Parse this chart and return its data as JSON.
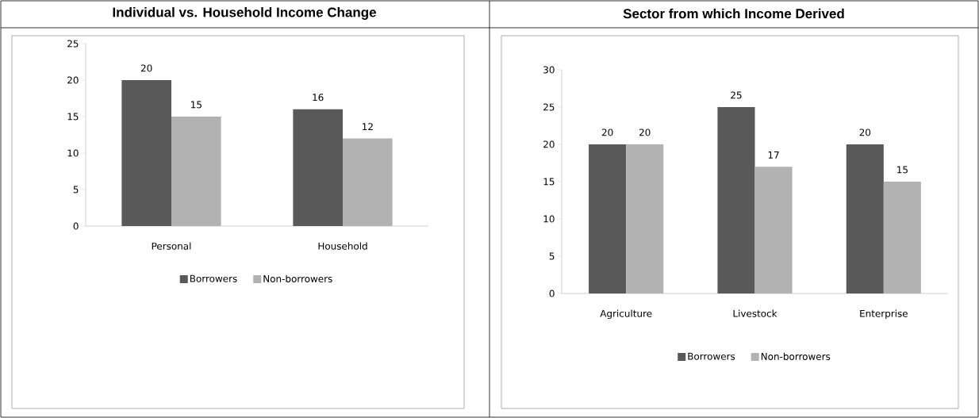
{
  "chart_data": [
    {
      "type": "bar",
      "title": "Individual vs. Household Income Change",
      "categories": [
        "Personal",
        "Household"
      ],
      "series": [
        {
          "name": "Borrowers",
          "color": "#595959",
          "values": [
            20,
            16
          ]
        },
        {
          "name": "Non-borrowers",
          "color": "#b2b2b2",
          "values": [
            15,
            12
          ]
        }
      ],
      "ylim": [
        0,
        25
      ],
      "yticks": [
        0,
        5,
        10,
        15,
        20,
        25
      ],
      "data_labels": true,
      "legend": "bottom",
      "grid": false
    },
    {
      "type": "bar",
      "title": "Sector from which Income Derived",
      "categories": [
        "Agriculture",
        "Livestock",
        "Enterprise"
      ],
      "series": [
        {
          "name": "Borrowers",
          "color": "#595959",
          "values": [
            20,
            25,
            20
          ]
        },
        {
          "name": "Non-borrowers",
          "color": "#b2b2b2",
          "values": [
            20,
            17,
            15
          ]
        }
      ],
      "ylim": [
        0,
        30
      ],
      "yticks": [
        0,
        5,
        10,
        15,
        20,
        25,
        30
      ],
      "data_labels": true,
      "legend": "bottom",
      "grid": false
    }
  ]
}
